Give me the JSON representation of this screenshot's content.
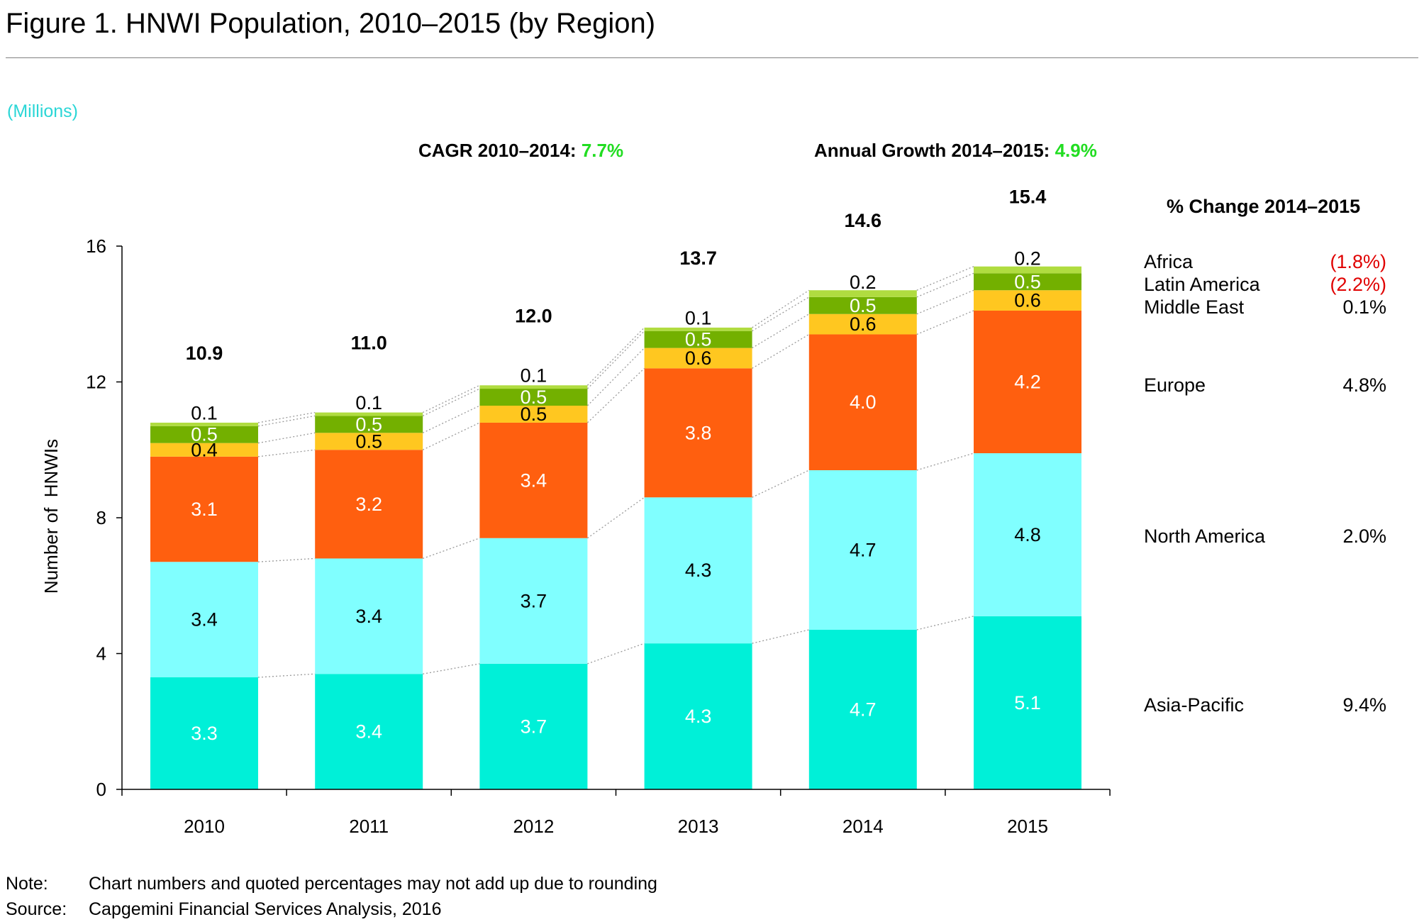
{
  "title": "Figure 1. HNWI Population, 2010–2015 (by Region)",
  "unit_label": "(Millions)",
  "cagr": {
    "label": "CAGR 2010–2014: ",
    "value": "7.7%"
  },
  "annual_growth": {
    "label": "Annual Growth 2014–2015: ",
    "value": "4.9%"
  },
  "change_header": "% Change 2014–2015",
  "notes": [
    {
      "label": "Note:",
      "text": "Chart numbers and quoted percentages may not add up due to rounding"
    },
    {
      "label": "Source:",
      "text": "Capgemini Financial Services Analysis, 2016"
    }
  ],
  "chart_data": {
    "type": "bar",
    "stacked": true,
    "categories": [
      "2010",
      "2011",
      "2012",
      "2013",
      "2014",
      "2015"
    ],
    "ylabel": "Number of  HNWIs",
    "ylim": [
      0,
      16
    ],
    "yticks": [
      "0",
      "4",
      "8",
      "12",
      "16"
    ],
    "grid": false,
    "totals": [
      "10.9",
      "11.0",
      "12.0",
      "13.7",
      "14.6",
      "15.4"
    ],
    "series": [
      {
        "name": "Asia-Pacific",
        "color": "#00f0d8",
        "label_color": "#ffffff",
        "change": "9.4%",
        "change_color": "#000000",
        "values": [
          3.3,
          3.4,
          3.7,
          4.3,
          4.7,
          5.1
        ],
        "labels": [
          "3.3",
          "3.4",
          "3.7",
          "4.3",
          "4.7",
          "5.1"
        ]
      },
      {
        "name": "North America",
        "color": "#80ffff",
        "label_color": "#000000",
        "change": "2.0%",
        "change_color": "#000000",
        "values": [
          3.4,
          3.4,
          3.7,
          4.3,
          4.7,
          4.8
        ],
        "labels": [
          "3.4",
          "3.4",
          "3.7",
          "4.3",
          "4.7",
          "4.8"
        ]
      },
      {
        "name": "Europe",
        "color": "#ff5f0f",
        "label_color": "#ffffff",
        "change": "4.8%",
        "change_color": "#000000",
        "values": [
          3.1,
          3.2,
          3.4,
          3.8,
          4.0,
          4.2
        ],
        "labels": [
          "3.1",
          "3.2",
          "3.4",
          "3.8",
          "4.0",
          "4.2"
        ]
      },
      {
        "name": "Middle East",
        "color": "#ffc720",
        "label_color": "#000000",
        "change": "0.1%",
        "change_color": "#000000",
        "values": [
          0.4,
          0.5,
          0.5,
          0.6,
          0.6,
          0.6
        ],
        "labels": [
          "0.4",
          "0.5",
          "0.5",
          "0.6",
          "0.6",
          "0.6"
        ]
      },
      {
        "name": "Latin America",
        "color": "#73b000",
        "label_color": "#ffffff",
        "change": "(2.2%)",
        "change_color": "#e00000",
        "values": [
          0.5,
          0.5,
          0.5,
          0.5,
          0.5,
          0.5
        ],
        "labels": [
          "0.5",
          "0.5",
          "0.5",
          "0.5",
          "0.5",
          "0.5"
        ]
      },
      {
        "name": "Africa",
        "color": "#b0dc40",
        "label_color": "#000000",
        "change": "(1.8%)",
        "change_color": "#e00000",
        "values": [
          0.1,
          0.1,
          0.1,
          0.1,
          0.2,
          0.2
        ],
        "labels": [
          "0.1",
          "0.1",
          "0.1",
          "0.1",
          "0.2",
          "0.2"
        ]
      }
    ]
  }
}
